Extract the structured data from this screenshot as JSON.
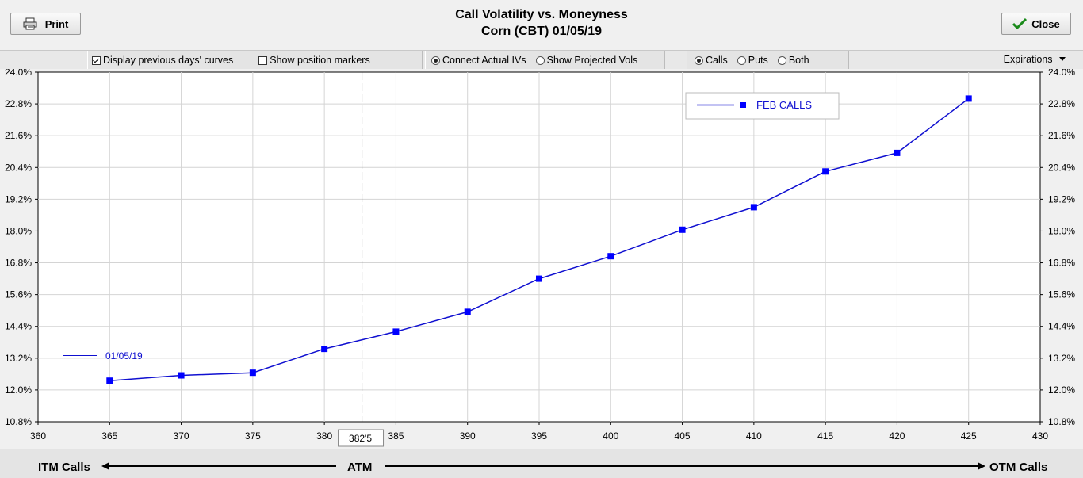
{
  "header": {
    "title": "Call Volatility vs. Moneyness",
    "subtitle": "Corn (CBT) 01/05/19",
    "print_label": "Print",
    "close_label": "Close"
  },
  "toolbar": {
    "display_prev_label": "Display previous days' curves",
    "display_prev_checked": true,
    "show_markers_label": "Show position markers",
    "show_markers_checked": false,
    "connect_iv_label": "Connect Actual IVs",
    "show_projected_label": "Show Projected Vols",
    "iv_mode": "Connect Actual IVs",
    "calls_label": "Calls",
    "puts_label": "Puts",
    "both_label": "Both",
    "option_type": "Calls",
    "expirations_label": "Expirations"
  },
  "footer": {
    "itm_label": "ITM Calls",
    "atm_label": "ATM",
    "otm_label": "OTM Calls"
  },
  "colors": {
    "series": "#0000ff",
    "series_line": "#1010d0",
    "atm_line": "#000000"
  },
  "chart_data": {
    "type": "line",
    "x": [
      365,
      370,
      375,
      380,
      385,
      390,
      395,
      400,
      405,
      410,
      415,
      420,
      425
    ],
    "series": [
      {
        "name": "FEB CALLS",
        "values": [
          12.35,
          12.55,
          12.65,
          13.55,
          14.2,
          14.95,
          16.2,
          17.05,
          18.05,
          18.9,
          20.25,
          20.95,
          23.0
        ]
      }
    ],
    "previous_day_label": "01/05/19",
    "atm_marker": {
      "x": 382.625,
      "label": "382'5"
    },
    "xlim": [
      360,
      430
    ],
    "ylim": [
      10.8,
      24.0
    ],
    "x_ticks": [
      "360",
      "365",
      "370",
      "375",
      "380",
      "385",
      "390",
      "395",
      "400",
      "405",
      "410",
      "415",
      "420",
      "425",
      "430"
    ],
    "y_ticks": [
      "10.8%",
      "12.0%",
      "13.2%",
      "14.4%",
      "15.6%",
      "16.8%",
      "18.0%",
      "19.2%",
      "20.4%",
      "21.6%",
      "22.8%",
      "24.0%"
    ],
    "grid": true,
    "legend_position": "top-right"
  }
}
